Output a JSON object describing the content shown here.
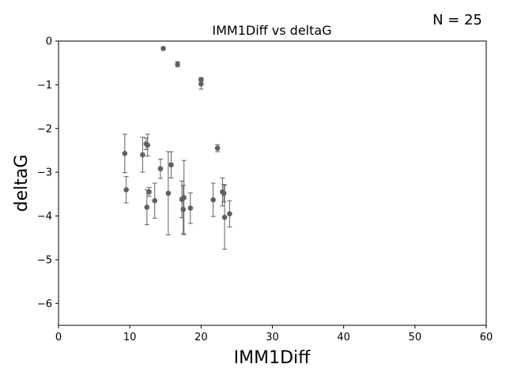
{
  "chart_data": {
    "type": "scatter",
    "title": "IMM1Diff vs deltaG",
    "annotation": "N = 25",
    "xlabel": "IMM1Diff",
    "ylabel": "deltaG",
    "xlim": [
      0,
      60
    ],
    "ylim": [
      -6.5,
      0
    ],
    "xticks": [
      0,
      10,
      20,
      30,
      40,
      50,
      60
    ],
    "yticks": [
      0,
      -1,
      -2,
      -3,
      -4,
      -5,
      -6
    ],
    "grid": false,
    "marker_color": "#606060",
    "points": [
      {
        "x": 14.7,
        "y": -0.17,
        "err": 0.03
      },
      {
        "x": 16.7,
        "y": -0.53,
        "err": 0.06
      },
      {
        "x": 20.0,
        "y": -0.88,
        "err": 0.04
      },
      {
        "x": 20.0,
        "y": -0.98,
        "err": 0.12
      },
      {
        "x": 22.3,
        "y": -2.45,
        "err": 0.08
      },
      {
        "x": 9.3,
        "y": -2.57,
        "err": 0.44
      },
      {
        "x": 9.5,
        "y": -3.4,
        "err": 0.3
      },
      {
        "x": 11.8,
        "y": -2.6,
        "err": 0.4
      },
      {
        "x": 12.3,
        "y": -2.35,
        "err": 0.13
      },
      {
        "x": 12.5,
        "y": -2.38,
        "err": 0.25
      },
      {
        "x": 12.4,
        "y": -3.8,
        "err": 0.4
      },
      {
        "x": 12.7,
        "y": -3.45,
        "err": 0.1
      },
      {
        "x": 13.5,
        "y": -3.65,
        "err": 0.4
      },
      {
        "x": 14.3,
        "y": -2.92,
        "err": 0.22
      },
      {
        "x": 15.4,
        "y": -3.48,
        "err": 0.95
      },
      {
        "x": 15.8,
        "y": -2.83,
        "err": 0.3
      },
      {
        "x": 17.3,
        "y": -3.62,
        "err": 0.42
      },
      {
        "x": 17.5,
        "y": -3.85,
        "err": 0.55
      },
      {
        "x": 17.6,
        "y": -3.58,
        "err": 0.85
      },
      {
        "x": 18.5,
        "y": -3.82,
        "err": 0.35
      },
      {
        "x": 21.7,
        "y": -3.63,
        "err": 0.38
      },
      {
        "x": 23.0,
        "y": -3.45,
        "err": 0.32
      },
      {
        "x": 23.2,
        "y": -3.48,
        "err": 0.2
      },
      {
        "x": 23.3,
        "y": -4.03,
        "err": 0.73
      },
      {
        "x": 24.0,
        "y": -3.95,
        "err": 0.3
      }
    ]
  }
}
